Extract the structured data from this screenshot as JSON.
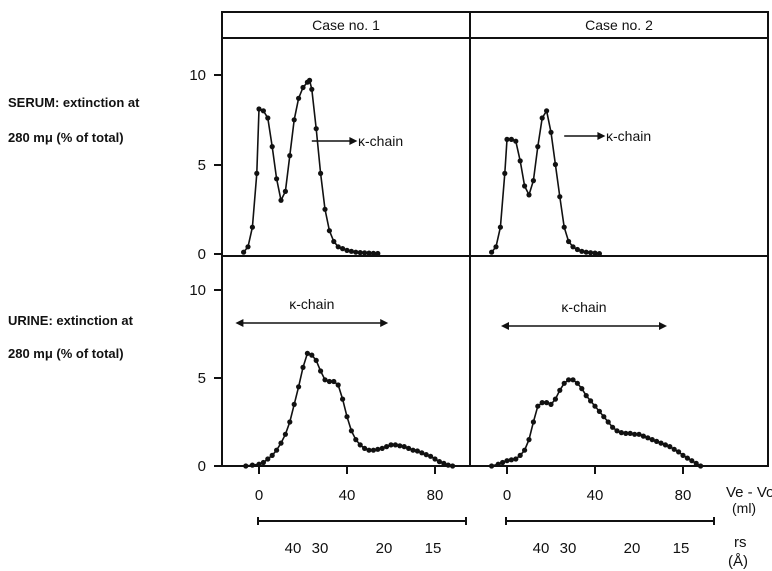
{
  "row_labels": {
    "serum_line1": "SERUM: extinction at",
    "serum_line2": "280 mμ (% of total)",
    "urine_line1": "URINE: extinction at",
    "urine_line2": "280 mμ (% of total)"
  },
  "y_ticks": [
    "0",
    "5",
    "10"
  ],
  "x_ticks": [
    "0",
    "40",
    "80"
  ],
  "x_axis_label": {
    "line1": "Ve - Vo",
    "line2": "(ml)"
  },
  "rs_axis": {
    "ticks": [
      "40",
      "30",
      "20",
      "15"
    ],
    "label_line1": "rs",
    "label_line2": "(Å)"
  },
  "chart_data": [
    {
      "type": "line",
      "panel": "serum-case-1",
      "title": "Case no. 1",
      "ylabel": "SERUM: extinction at 280 mμ (% of total)",
      "xlabel": "Ve - Vo (ml)",
      "xlim": [
        -12,
        90
      ],
      "ylim": [
        0,
        12
      ],
      "annotation": {
        "text": "κ-chain",
        "kind": "right-arrow"
      },
      "x": [
        -7,
        -5,
        -3,
        -1,
        0,
        2,
        4,
        6,
        8,
        10,
        12,
        14,
        16,
        18,
        20,
        22,
        23,
        24,
        26,
        28,
        30,
        32,
        34,
        36,
        38,
        40,
        42,
        44,
        46,
        48,
        50,
        52,
        54
      ],
      "y": [
        0.1,
        0.4,
        1.5,
        4.5,
        8.1,
        8.0,
        7.6,
        6.0,
        4.2,
        3.0,
        3.5,
        5.5,
        7.5,
        8.7,
        9.3,
        9.6,
        9.7,
        9.2,
        7.0,
        4.5,
        2.5,
        1.3,
        0.7,
        0.4,
        0.3,
        0.2,
        0.15,
        0.1,
        0.08,
        0.06,
        0.05,
        0.04,
        0.03
      ]
    },
    {
      "type": "line",
      "panel": "serum-case-2",
      "title": "Case no. 2",
      "xlabel": "Ve - Vo (ml)",
      "xlim": [
        -12,
        90
      ],
      "ylim": [
        0,
        12
      ],
      "annotation": {
        "text": "κ-chain",
        "kind": "right-arrow"
      },
      "x": [
        -7,
        -5,
        -3,
        -1,
        0,
        2,
        4,
        6,
        8,
        10,
        12,
        14,
        16,
        18,
        20,
        22,
        24,
        26,
        28,
        30,
        32,
        34,
        36,
        38,
        40,
        42
      ],
      "y": [
        0.1,
        0.4,
        1.5,
        4.5,
        6.4,
        6.4,
        6.3,
        5.2,
        3.8,
        3.3,
        4.1,
        6.0,
        7.6,
        8.0,
        6.8,
        5.0,
        3.2,
        1.5,
        0.7,
        0.4,
        0.25,
        0.15,
        0.1,
        0.07,
        0.05,
        0.02
      ]
    },
    {
      "type": "line",
      "panel": "urine-case-1",
      "ylabel": "URINE: extinction at 280 mμ (% of total)",
      "xlabel": "Ve - Vo (ml)",
      "xlim": [
        -12,
        90
      ],
      "ylim": [
        0,
        12
      ],
      "annotation": {
        "text": "κ-chain",
        "kind": "double-arrow",
        "from": -8,
        "to": 56
      },
      "x": [
        -6,
        -3,
        0,
        2,
        4,
        6,
        8,
        10,
        12,
        14,
        16,
        18,
        20,
        22,
        24,
        26,
        28,
        30,
        32,
        34,
        36,
        38,
        40,
        42,
        44,
        46,
        48,
        50,
        52,
        54,
        56,
        58,
        60,
        62,
        64,
        66,
        68,
        70,
        72,
        74,
        76,
        78,
        80,
        82,
        84,
        86,
        88
      ],
      "y": [
        0,
        0.05,
        0.1,
        0.2,
        0.4,
        0.6,
        0.9,
        1.3,
        1.8,
        2.5,
        3.5,
        4.5,
        5.6,
        6.4,
        6.3,
        6.0,
        5.4,
        4.9,
        4.8,
        4.8,
        4.6,
        3.8,
        2.8,
        2.0,
        1.5,
        1.2,
        1.0,
        0.9,
        0.9,
        0.95,
        1.0,
        1.1,
        1.2,
        1.2,
        1.15,
        1.1,
        1.0,
        0.9,
        0.85,
        0.75,
        0.65,
        0.55,
        0.4,
        0.25,
        0.15,
        0.05,
        0
      ]
    },
    {
      "type": "line",
      "panel": "urine-case-2",
      "xlabel": "Ve - Vo (ml)",
      "xlim": [
        -12,
        90
      ],
      "ylim": [
        0,
        12
      ],
      "annotation": {
        "text": "κ-chain",
        "kind": "double-arrow",
        "from": 0,
        "to": 70
      },
      "x": [
        -7,
        -4,
        -2,
        0,
        2,
        4,
        6,
        8,
        10,
        12,
        14,
        16,
        18,
        20,
        22,
        24,
        26,
        28,
        30,
        32,
        34,
        36,
        38,
        40,
        42,
        44,
        46,
        48,
        50,
        52,
        54,
        56,
        58,
        60,
        62,
        64,
        66,
        68,
        70,
        72,
        74,
        76,
        78,
        80,
        82,
        84,
        86,
        88
      ],
      "y": [
        0,
        0.1,
        0.2,
        0.3,
        0.35,
        0.4,
        0.6,
        0.9,
        1.5,
        2.5,
        3.4,
        3.6,
        3.6,
        3.5,
        3.8,
        4.3,
        4.7,
        4.9,
        4.9,
        4.7,
        4.4,
        4.0,
        3.7,
        3.4,
        3.1,
        2.8,
        2.5,
        2.2,
        2.0,
        1.9,
        1.85,
        1.85,
        1.8,
        1.8,
        1.7,
        1.6,
        1.5,
        1.4,
        1.3,
        1.2,
        1.1,
        0.95,
        0.8,
        0.6,
        0.45,
        0.3,
        0.15,
        0
      ]
    }
  ]
}
